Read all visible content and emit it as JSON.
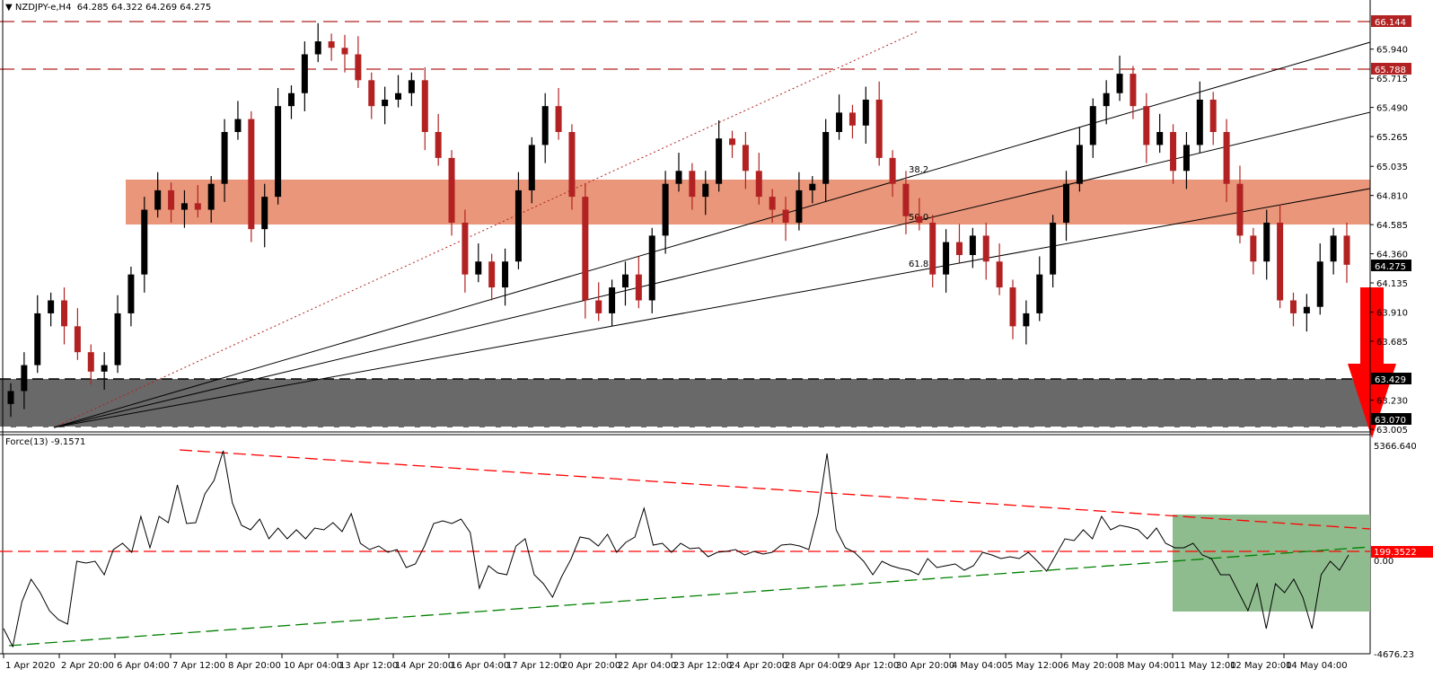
{
  "header": {
    "symbol_label": "NZDJPY-e,H4",
    "ohlc": "64.285 64.322 64.269 64.275"
  },
  "force_panel": {
    "label": "Force(13) -9.1571",
    "axis_max": "5366.640",
    "axis_min": "-4676.23",
    "level_label": "199.3522",
    "zero_label": "0.00"
  },
  "price_axis": {
    "ticks": [
      "65.940",
      "65.715",
      "65.490",
      "65.265",
      "65.035",
      "64.810",
      "64.585",
      "64.360",
      "64.135",
      "63.910",
      "63.685",
      "63.230",
      "63.005"
    ],
    "highlighted": [
      {
        "value": "66.144",
        "color": "#b22222"
      },
      {
        "value": "65.788",
        "color": "#b22222"
      },
      {
        "value": "64.275",
        "color": "#000000"
      },
      {
        "value": "63.429",
        "color": "#000000"
      },
      {
        "value": "63.070",
        "color": "#000000"
      }
    ]
  },
  "time_axis": {
    "labels": [
      "1 Apr 2020",
      "2 Apr 20:00",
      "6 Apr 04:00",
      "7 Apr 12:00",
      "8 Apr 20:00",
      "10 Apr 04:00",
      "13 Apr 12:00",
      "14 Apr 20:00",
      "16 Apr 04:00",
      "17 Apr 12:00",
      "20 Apr 20:00",
      "22 Apr 04:00",
      "23 Apr 12:00",
      "24 Apr 20:00",
      "28 Apr 04:00",
      "29 Apr 12:00",
      "30 Apr 20:00",
      "4 May 04:00",
      "5 May 12:00",
      "6 May 20:00",
      "8 May 04:00",
      "11 May 12:00",
      "12 May 20:00",
      "14 May 04:00"
    ]
  },
  "fib_labels": [
    "38.2",
    "50.0",
    "61.8"
  ],
  "colors": {
    "bull": "#000000",
    "bear": "#b22222",
    "resistance_zone": "#e9967a",
    "support_zone": "#696969",
    "force_zone": "#8fbc8f",
    "arrow": "#ff0000",
    "resistance_line": "#b22222",
    "force_down_trend": "#ff0000",
    "force_up_trend": "#008000"
  },
  "chart_data": [
    {
      "type": "candlestick",
      "title": "NZDJPY-e,H4",
      "ohlc_last": {
        "open": 64.285,
        "high": 64.322,
        "low": 64.269,
        "close": 64.275
      },
      "ylim": [
        63.005,
        66.25
      ],
      "x_range": [
        "1 Apr 2020",
        "14 May 2020"
      ],
      "horizontal_levels": [
        66.144,
        65.788,
        63.429,
        63.07
      ],
      "zones": [
        {
          "name": "resistance-zone",
          "from": 64.62,
          "to": 64.93,
          "color": "#e9967a"
        },
        {
          "name": "support-zone",
          "from": 63.07,
          "to": 63.429,
          "color": "#696969"
        }
      ],
      "fibonacci_fan": {
        "origin": "1 Apr 2020 low ~63.07",
        "anchor": "30 Apr high ~66.10",
        "levels": [
          "38.2",
          "50.0",
          "61.8"
        ]
      },
      "annotation": "red down arrow pointing toward 63.005",
      "approx_closes": [
        63.3,
        63.5,
        63.9,
        64.0,
        63.8,
        63.6,
        63.45,
        63.5,
        63.9,
        64.2,
        64.7,
        64.85,
        64.7,
        64.75,
        64.7,
        64.9,
        65.3,
        65.4,
        64.55,
        64.8,
        65.5,
        65.6,
        65.9,
        66.0,
        65.95,
        65.9,
        65.7,
        65.5,
        65.55,
        65.6,
        65.7,
        65.3,
        65.1,
        64.6,
        64.2,
        64.3,
        64.1,
        64.3,
        64.85,
        65.2,
        65.5,
        65.3,
        64.8,
        64.0,
        63.9,
        64.1,
        64.2,
        64.0,
        64.5,
        64.9,
        65.0,
        64.8,
        64.9,
        65.25,
        65.2,
        65.0,
        64.8,
        64.7,
        64.6,
        64.85,
        64.9,
        65.3,
        65.45,
        65.35,
        65.55,
        65.1,
        64.9,
        64.65,
        64.6,
        64.2,
        64.45,
        64.35,
        64.5,
        64.3,
        64.1,
        63.8,
        63.9,
        64.2,
        64.6,
        64.9,
        65.2,
        65.5,
        65.6,
        65.75,
        65.5,
        65.2,
        65.3,
        65.0,
        65.2,
        65.55,
        65.3,
        64.9,
        64.5,
        64.3,
        64.6,
        64.0,
        63.9,
        63.95,
        64.3,
        64.5,
        64.275
      ],
      "series_indicator": {
        "name": "Force(13)",
        "current": -9.1571,
        "ylim": [
          -4676.23,
          5366.64
        ],
        "reference_level": 199.3522,
        "trendlines": [
          {
            "name": "descending-resistance",
            "color": "#ff0000",
            "from": "7 Apr 12:00 peak",
            "to": "14 May"
          },
          {
            "name": "ascending-support",
            "color": "#008000",
            "from": "1 Apr",
            "to": "14 May"
          }
        ],
        "highlight_zone": {
          "from": "8 May 04:00",
          "to": "14 May",
          "color": "#8fbc8f"
        }
      }
    }
  ]
}
